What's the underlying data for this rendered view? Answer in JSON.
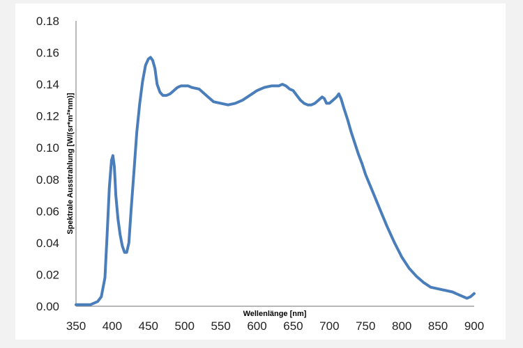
{
  "chart_data": {
    "type": "line",
    "xlabel": "Wellenlänge [nm]",
    "ylabel": "Spektrale Ausstrahlung [W/(sr*m²*nm)]",
    "xlim": [
      350,
      900
    ],
    "ylim": [
      0,
      0.18
    ],
    "x_ticks": [
      "350",
      "400",
      "450",
      "500",
      "550",
      "600",
      "650",
      "700",
      "750",
      "800",
      "850",
      "900"
    ],
    "y_ticks": [
      "0.00",
      "0.02",
      "0.04",
      "0.06",
      "0.08",
      "0.10",
      "0.12",
      "0.14",
      "0.16",
      "0.18"
    ],
    "grid": false,
    "legend": "none",
    "series": [
      {
        "color": "#4a7ebb",
        "x": [
          350,
          360,
          370,
          375,
          380,
          385,
          390,
          393,
          396,
          399,
          401,
          403,
          405,
          408,
          411,
          414,
          417,
          420,
          423,
          426,
          430,
          434,
          438,
          442,
          446,
          450,
          453,
          456,
          459,
          462,
          466,
          470,
          475,
          480,
          485,
          490,
          495,
          500,
          505,
          510,
          520,
          530,
          540,
          550,
          560,
          570,
          580,
          590,
          600,
          610,
          620,
          630,
          635,
          640,
          645,
          650,
          655,
          660,
          665,
          670,
          675,
          680,
          685,
          690,
          693,
          696,
          700,
          705,
          710,
          713,
          716,
          720,
          725,
          730,
          735,
          740,
          745,
          750,
          760,
          770,
          780,
          790,
          800,
          810,
          820,
          830,
          840,
          850,
          860,
          870,
          875,
          880,
          885,
          890,
          895,
          900
        ],
        "y": [
          0.001,
          0.001,
          0.001,
          0.002,
          0.003,
          0.006,
          0.018,
          0.045,
          0.075,
          0.092,
          0.095,
          0.088,
          0.07,
          0.055,
          0.045,
          0.038,
          0.034,
          0.034,
          0.04,
          0.06,
          0.085,
          0.11,
          0.128,
          0.142,
          0.152,
          0.156,
          0.157,
          0.155,
          0.15,
          0.14,
          0.135,
          0.133,
          0.133,
          0.134,
          0.136,
          0.138,
          0.139,
          0.139,
          0.139,
          0.138,
          0.137,
          0.133,
          0.129,
          0.128,
          0.127,
          0.128,
          0.13,
          0.133,
          0.136,
          0.138,
          0.139,
          0.139,
          0.14,
          0.139,
          0.137,
          0.136,
          0.133,
          0.13,
          0.128,
          0.127,
          0.127,
          0.128,
          0.13,
          0.132,
          0.131,
          0.128,
          0.128,
          0.13,
          0.132,
          0.134,
          0.131,
          0.125,
          0.118,
          0.11,
          0.103,
          0.096,
          0.09,
          0.083,
          0.072,
          0.061,
          0.05,
          0.04,
          0.031,
          0.024,
          0.019,
          0.015,
          0.012,
          0.011,
          0.01,
          0.009,
          0.008,
          0.007,
          0.006,
          0.005,
          0.006,
          0.008
        ]
      }
    ]
  }
}
